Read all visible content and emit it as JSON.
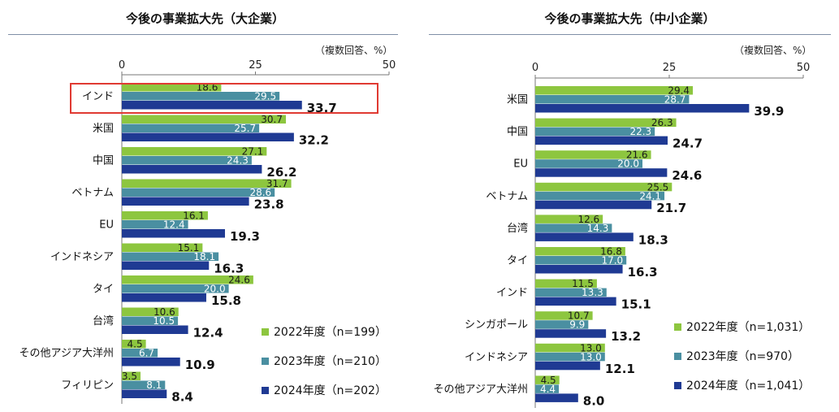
{
  "chart_data": [
    {
      "type": "bar",
      "title": "今後の事業拡大先（大企業）",
      "unit_note": "（複数回答、%）",
      "xlim": [
        0,
        50
      ],
      "ticks": [
        0,
        25,
        50
      ],
      "categories": [
        "インド",
        "米国",
        "中国",
        "ベトナム",
        "EU",
        "インドネシア",
        "タイ",
        "台湾",
        "その他アジア大洋州",
        "フィリピン"
      ],
      "highlighted_category": "インド",
      "series": [
        {
          "name": "2022年度（n=199）",
          "color": "#8dc63f",
          "values": [
            18.6,
            30.7,
            27.1,
            31.7,
            16.1,
            15.1,
            24.6,
            10.6,
            4.5,
            3.5
          ]
        },
        {
          "name": "2023年度（n=210）",
          "color": "#4a8fa1",
          "values": [
            29.5,
            25.7,
            24.3,
            28.6,
            12.4,
            18.1,
            20.0,
            10.5,
            6.7,
            8.1
          ]
        },
        {
          "name": "2024年度（n=202）",
          "color": "#1f3a93",
          "values": [
            33.7,
            32.2,
            26.2,
            23.8,
            19.3,
            16.3,
            15.8,
            12.4,
            10.9,
            8.4
          ]
        }
      ]
    },
    {
      "type": "bar",
      "title": "今後の事業拡大先（中小企業）",
      "unit_note": "（複数回答、%）",
      "xlim": [
        0,
        50
      ],
      "ticks": [
        0,
        25,
        50
      ],
      "categories": [
        "米国",
        "中国",
        "EU",
        "ベトナム",
        "台湾",
        "タイ",
        "インド",
        "シンガポール",
        "インドネシア",
        "その他アジア大洋州"
      ],
      "series": [
        {
          "name": "2022年度（n=1,031）",
          "color": "#8dc63f",
          "values": [
            29.4,
            26.3,
            21.6,
            25.5,
            12.6,
            16.8,
            11.5,
            10.7,
            13.0,
            4.5
          ]
        },
        {
          "name": "2023年度（n=970）",
          "color": "#4a8fa1",
          "values": [
            28.7,
            22.3,
            20.0,
            24.1,
            14.3,
            17.0,
            13.3,
            9.9,
            13.0,
            4.4
          ]
        },
        {
          "name": "2024年度（n=1,041）",
          "color": "#1f3a93",
          "values": [
            39.9,
            24.7,
            24.6,
            21.7,
            18.3,
            16.3,
            15.1,
            13.2,
            12.1,
            8.0
          ]
        }
      ]
    }
  ]
}
